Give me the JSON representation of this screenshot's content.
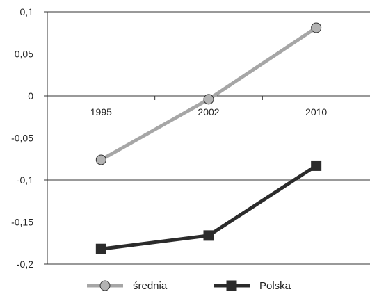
{
  "chart_data": {
    "type": "line",
    "categories": [
      "1995",
      "2002",
      "2010"
    ],
    "series": [
      {
        "name": "średnia",
        "values": [
          -0.076,
          -0.004,
          0.081
        ],
        "color": "#a6a6a6",
        "marker": "circle"
      },
      {
        "name": "Polska",
        "values": [
          -0.182,
          -0.166,
          -0.083
        ],
        "color": "#2b2b2b",
        "marker": "square"
      }
    ],
    "ylim": [
      -0.2,
      0.1
    ],
    "yticks": [
      "0,1",
      "0,05",
      "0",
      "-0,05",
      "-0,1",
      "-0,15",
      "-0,2"
    ],
    "grid": true,
    "legend_position": "bottom"
  }
}
